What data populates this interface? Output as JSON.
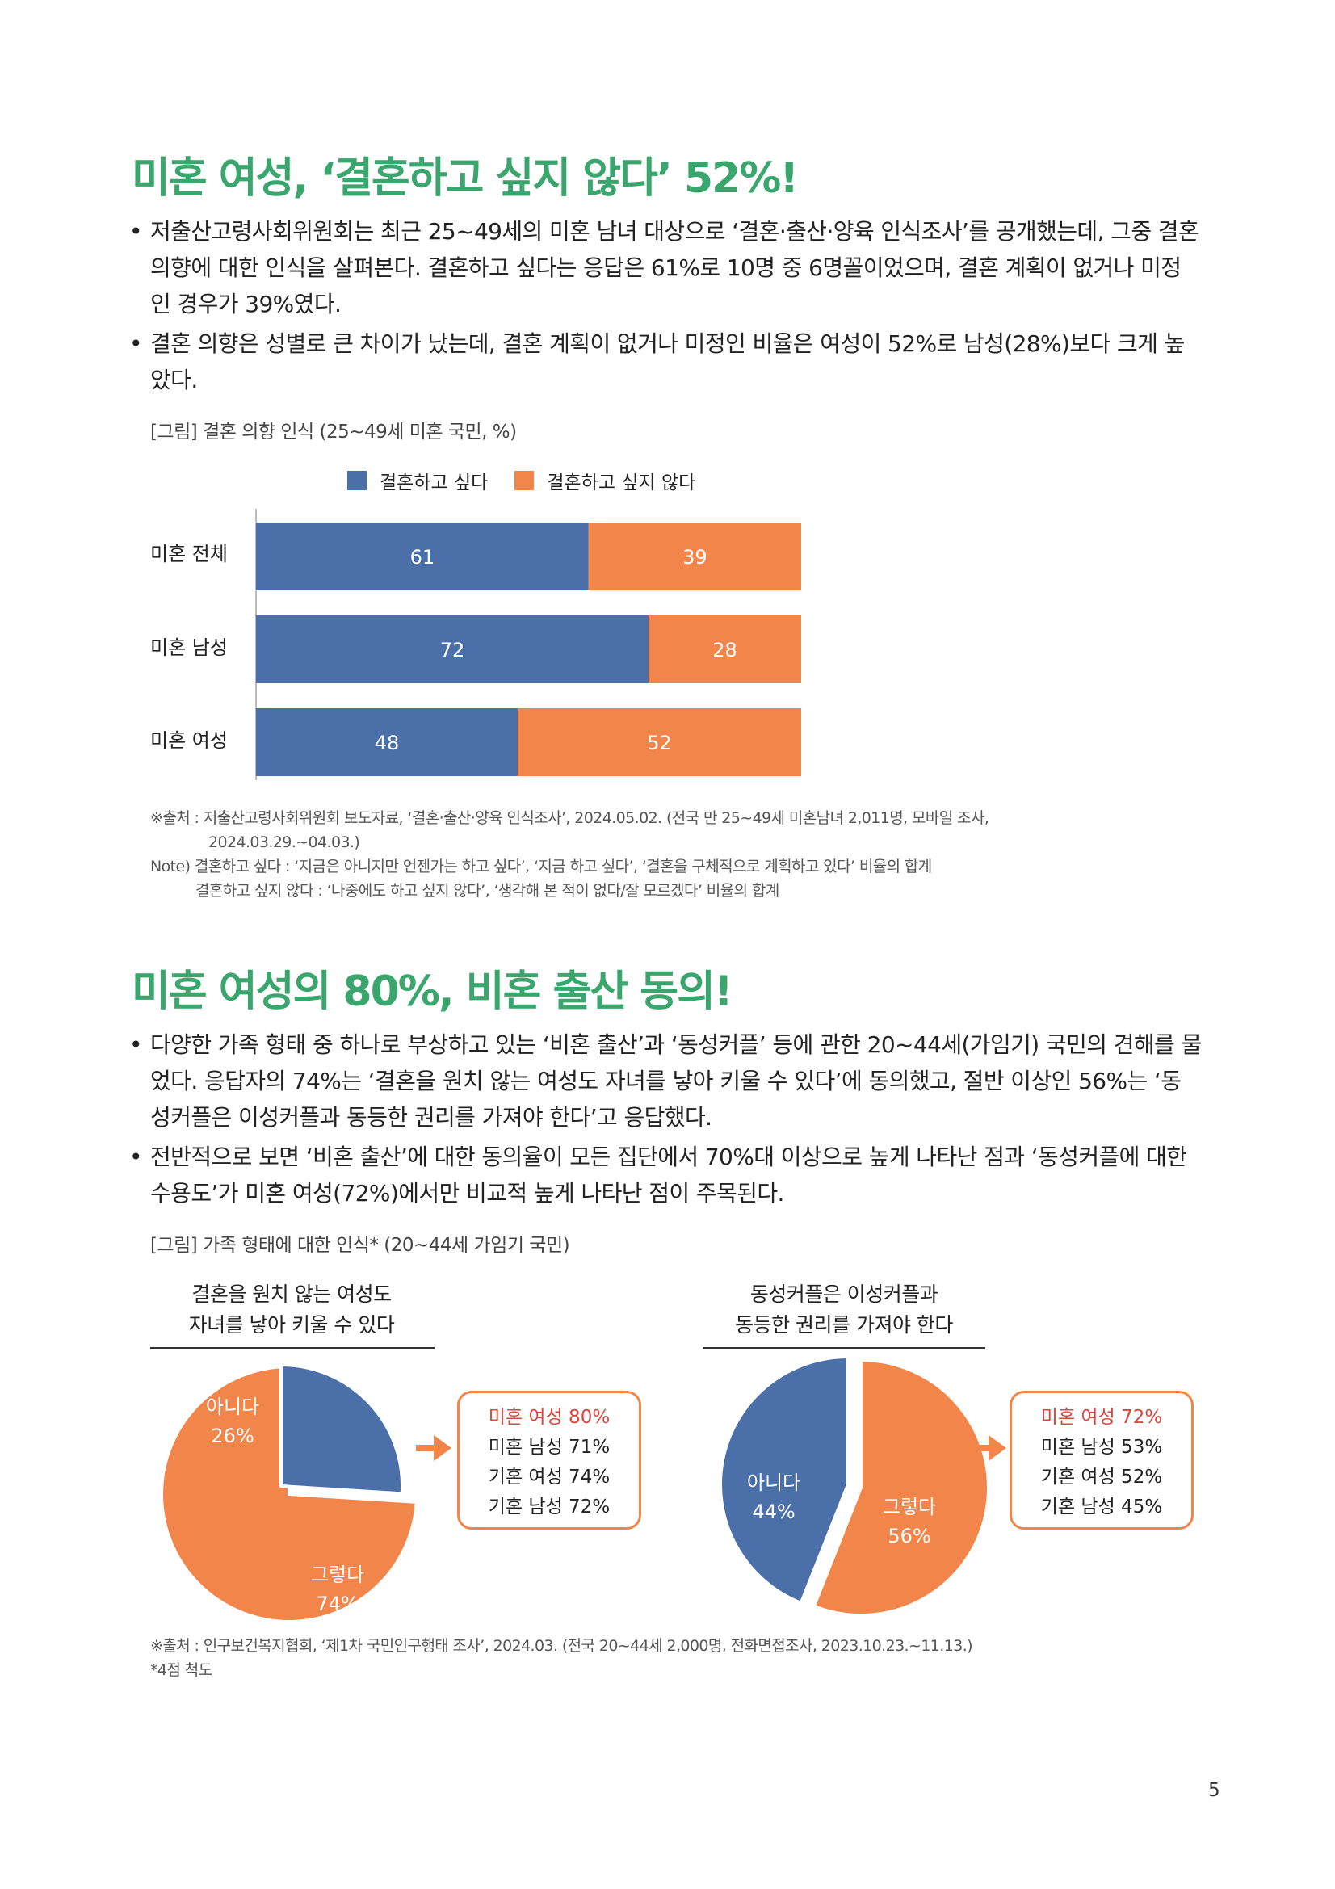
{
  "section1": {
    "heading": "미혼 여성, ‘결혼하고 싶지 않다’ 52%!",
    "bullets": [
      [
        "저출산고령사회위원회는 최근 25~49세의 미혼 남녀 대상으로 ‘결혼·출산·양육 인식조사’를 공개했는데, 그중 결혼",
        "의향에 대한 인식을 살펴본다. 결혼하고 싶다는 응답은 61%로 10명 중 6명꼴이었으며, 결혼 계획이 없거나 미정",
        "인 경우가 39%였다."
      ],
      [
        "결혼 의향은 성별로 큰 차이가 났는데, 결혼 계획이 없거나 미정인 비율은 여성이 52%로 남성(28%)보다 크게 높",
        "았다."
      ]
    ],
    "figure_caption": "[그림] 결혼 의향 인식 (25~49세 미혼 국민, %)",
    "notes": [
      "※출처 : 저출산고령사회위원회 보도자료, ‘결혼·출산·양육 인식조사’, 2024.05.02. (전국 만 25~49세 미혼남녀 2,011명, 모바일 조사,",
      "2024.03.29.~04.03.)",
      "Note) 결혼하고 싶다 : ‘지금은 아니지만 언젠가는 하고 싶다’, ‘지금 하고 싶다’, ‘결혼을 구체적으로 계획하고 있다’ 비율의 합계",
      "결혼하고 싶지 않다 : ‘나중에도 하고 싶지 않다’, ‘생각해 본 적이 없다/잘 모르겠다’ 비율의 합계"
    ]
  },
  "chart_data": [
    {
      "type": "bar",
      "orientation": "horizontal",
      "stacked": true,
      "categories": [
        "미혼 전체",
        "미혼 남성",
        "미혼 여성"
      ],
      "series": [
        {
          "name": "결혼하고 싶다",
          "values": [
            61,
            72,
            48
          ],
          "color": "#4a6fa9"
        },
        {
          "name": "결혼하고 싶지 않다",
          "values": [
            39,
            28,
            52
          ],
          "color": "#f2854a"
        }
      ],
      "xlim": [
        0,
        100
      ],
      "legend": "top",
      "grid": false
    },
    {
      "type": "pie",
      "title": [
        "결혼을 원치 않는 여성도",
        "자녀를 낳아 키울 수 있다"
      ],
      "slices": [
        {
          "label": "아니다",
          "value": 26,
          "color": "#4a6fa9"
        },
        {
          "label": "그렇다",
          "value": 74,
          "color": "#f2854a"
        }
      ],
      "callout": [
        "미혼 여성 80%",
        "미혼 남성 71%",
        "기혼 여성 74%",
        "기혼 남성 72%"
      ]
    },
    {
      "type": "pie",
      "title": [
        "동성커플은 이성커플과",
        "동등한 권리를 가져야 한다"
      ],
      "slices": [
        {
          "label": "아니다",
          "value": 44,
          "color": "#4a6fa9"
        },
        {
          "label": "그렇다",
          "value": 56,
          "color": "#f2854a"
        }
      ],
      "callout": [
        "미혼 여성 72%",
        "미혼 남성 53%",
        "기혼 여성 52%",
        "기혼 남성 45%"
      ]
    }
  ],
  "section2": {
    "heading": "미혼 여성의 80%, 비혼 출산 동의!",
    "bullets": [
      [
        "다양한 가족 형태 중 하나로 부상하고 있는 ‘비혼 출산’과 ‘동성커플’ 등에 관한 20~44세(가임기) 국민의 견해를 물",
        "었다. 응답자의 74%는 ‘결혼을 원치 않는 여성도 자녀를 낳아 키울 수 있다’에 동의했고, 절반 이상인 56%는 ‘동",
        "성커플은 이성커플과 동등한 권리를 가져야 한다’고 응답했다."
      ],
      [
        "전반적으로 보면 ‘비혼 출산’에 대한 동의율이 모든 집단에서 70%대 이상으로 높게 나타난 점과 ‘동성커플에 대한",
        "수용도’가 미혼 여성(72%)에서만 비교적 높게 나타난 점이 주목된다."
      ]
    ],
    "figure_caption": "[그림] 가족 형태에 대한 인식* (20~44세 가임기 국민)",
    "notes": [
      "※출처 : 인구보건복지협회, ‘제1차 국민인구행태 조사’, 2024.03. (전국 20~44세 2,000명, 전화면접조사, 2023.10.23.~11.13.)",
      "*4점 척도"
    ]
  },
  "page_number": "5"
}
